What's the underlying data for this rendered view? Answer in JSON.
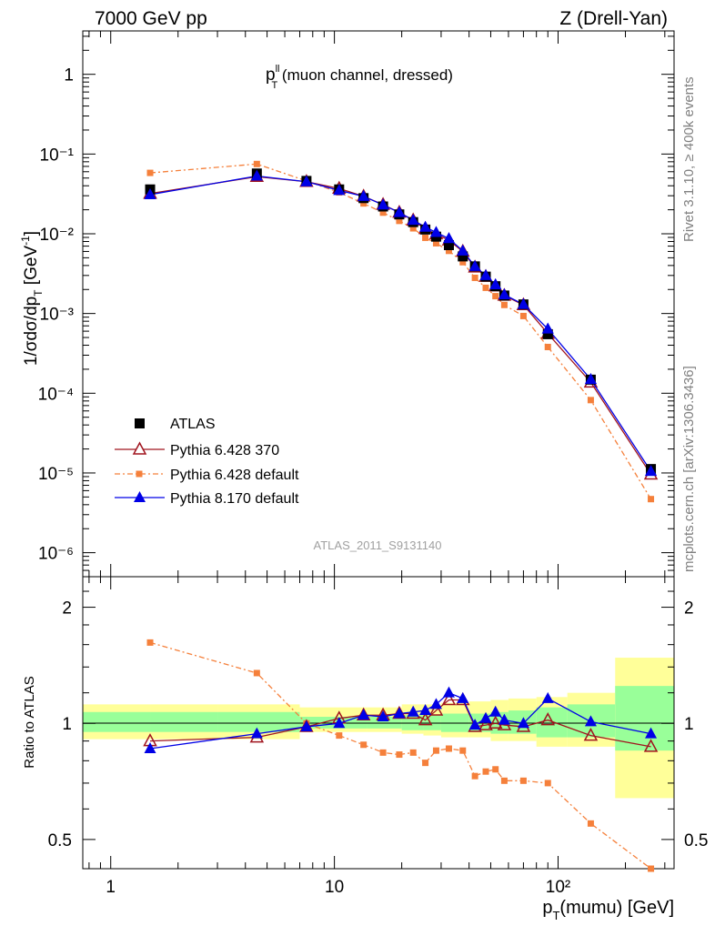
{
  "header": {
    "left": "7000 GeV pp",
    "right": "Z (Drell-Yan)"
  },
  "side": {
    "rivet": "Rivet 3.1.10, ≥ 400k events",
    "mcplots": "mcplots.cern.ch [arXiv:1306.3436]"
  },
  "title": {
    "main": "p",
    "sup": "ll",
    "sub": "T",
    "rest": " (muon channel, dressed)"
  },
  "analysis_id": "ATLAS_2011_S9131140",
  "axes": {
    "ylabel_top": "1/σdσ/dp",
    "ylabel_top_sub": "T",
    "ylabel_top_unit": "[GeV",
    "ylabel_top_unit_sup": "-1",
    "ylabel_top_close": "]",
    "ylabel_bottom": "Ratio to ATLAS",
    "xlabel": "p",
    "xlabel_sub": "T",
    "xlabel_rest": "(mumu) [GeV]"
  },
  "legend": [
    {
      "label": "ATLAS",
      "color": "#000000"
    },
    {
      "label": "Pythia 6.428 370",
      "color": "#a0141e"
    },
    {
      "label": "Pythia 6.428 default",
      "color": "#f5803b"
    },
    {
      "label": "Pythia 8.170 default",
      "color": "#0000e6"
    }
  ],
  "chart_data": {
    "type": "line",
    "x_scale": "log",
    "xlim": [
      0.75,
      330
    ],
    "top": {
      "y_scale": "log",
      "ylim": [
        5e-07,
        3.5
      ]
    },
    "bottom": {
      "y_scale": "log",
      "ylim": [
        0.42,
        2.4
      ]
    },
    "x": [
      1.5,
      4.5,
      7.5,
      10.5,
      13.5,
      16.5,
      19.5,
      22.5,
      25.5,
      28.5,
      32.5,
      37.5,
      42.5,
      47.5,
      52.5,
      57.5,
      70,
      90,
      140,
      260
    ],
    "series": [
      {
        "name": "ATLAS",
        "values": [
          0.036,
          0.057,
          0.046,
          0.036,
          0.028,
          0.022,
          0.0175,
          0.014,
          0.0113,
          0.0092,
          0.0072,
          0.0052,
          0.0039,
          0.0029,
          0.0022,
          0.00168,
          0.0013,
          0.00055,
          0.000148,
          1.12e-05
        ]
      },
      {
        "name": "Pythia 6.428 370",
        "values": [
          0.032,
          0.052,
          0.045,
          0.037,
          0.0295,
          0.0232,
          0.0185,
          0.0148,
          0.0115,
          0.0099,
          0.0083,
          0.006,
          0.0038,
          0.0029,
          0.0022,
          0.00168,
          0.00128,
          0.00056,
          0.000137,
          9.6e-06
        ]
      },
      {
        "name": "Pythia 6.428 default",
        "values": [
          0.058,
          0.075,
          0.046,
          0.033,
          0.024,
          0.0184,
          0.0145,
          0.0117,
          0.0089,
          0.0076,
          0.0061,
          0.0044,
          0.0028,
          0.0021,
          0.00165,
          0.00128,
          0.00093,
          0.00038,
          8.2e-05,
          4.7e-06
        ]
      },
      {
        "name": "Pythia 8.170 default",
        "values": [
          0.031,
          0.053,
          0.045,
          0.035,
          0.0295,
          0.023,
          0.0185,
          0.0148,
          0.0121,
          0.0104,
          0.0087,
          0.0061,
          0.0039,
          0.003,
          0.0023,
          0.00172,
          0.0013,
          0.00064,
          0.000149,
          1.05e-05
        ]
      }
    ],
    "ratio": [
      {
        "name": "Pythia 6.428 370",
        "values": [
          0.9,
          0.92,
          0.98,
          1.03,
          1.05,
          1.05,
          1.06,
          1.06,
          1.02,
          1.08,
          1.15,
          1.15,
          0.98,
          0.99,
          1.0,
          0.99,
          0.98,
          1.02,
          0.93,
          0.87
        ]
      },
      {
        "name": "Pythia 6.428 default",
        "values": [
          1.62,
          1.35,
          1.0,
          0.93,
          0.88,
          0.84,
          0.83,
          0.84,
          0.79,
          0.85,
          0.86,
          0.85,
          0.73,
          0.75,
          0.76,
          0.71,
          0.71,
          0.7,
          0.55,
          0.42
        ]
      },
      {
        "name": "Pythia 8.170 default",
        "values": [
          0.86,
          0.94,
          0.98,
          1.0,
          1.05,
          1.04,
          1.06,
          1.07,
          1.08,
          1.12,
          1.2,
          1.16,
          0.99,
          1.03,
          1.07,
          1.02,
          1.0,
          1.16,
          1.01,
          0.94
        ]
      }
    ],
    "ratio_band_edges": [
      0.75,
      1.5,
      3.0,
      7.0,
      14,
      20,
      25,
      30,
      40,
      50,
      60,
      80,
      110,
      180,
      330
    ],
    "ratio_band_yellow": [
      [
        0.91,
        1.12
      ],
      [
        0.91,
        1.12
      ],
      [
        0.91,
        1.12
      ],
      [
        0.95,
        1.1
      ],
      [
        0.95,
        1.1
      ],
      [
        0.94,
        1.12
      ],
      [
        0.93,
        1.12
      ],
      [
        0.92,
        1.13
      ],
      [
        0.92,
        1.14
      ],
      [
        0.9,
        1.15
      ],
      [
        0.9,
        1.16
      ],
      [
        0.87,
        1.17
      ],
      [
        0.87,
        1.2
      ],
      [
        0.64,
        1.48
      ]
    ],
    "ratio_band_green": [
      [
        0.95,
        1.07
      ],
      [
        0.95,
        1.07
      ],
      [
        0.95,
        1.07
      ],
      [
        0.97,
        1.04
      ],
      [
        0.97,
        1.04
      ],
      [
        0.96,
        1.05
      ],
      [
        0.96,
        1.05
      ],
      [
        0.95,
        1.06
      ],
      [
        0.95,
        1.06
      ],
      [
        0.94,
        1.07
      ],
      [
        0.94,
        1.08
      ],
      [
        0.92,
        1.1
      ],
      [
        0.92,
        1.12
      ],
      [
        0.85,
        1.25
      ]
    ],
    "x_tick_labels": [
      "1",
      "10",
      "10²"
    ],
    "y_top_tick_labels": [
      "1",
      "10⁻¹",
      "10⁻²",
      "10⁻³",
      "10⁻⁴",
      "10⁻⁵",
      "10⁻⁶"
    ],
    "y_bottom_tick_labels": [
      "2",
      "1",
      "0.5"
    ]
  }
}
